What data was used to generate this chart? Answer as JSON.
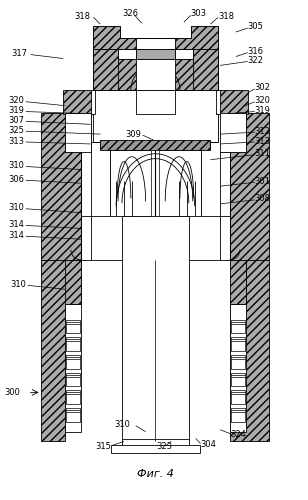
{
  "title": "Фиг. 4",
  "bg_color": "#ffffff",
  "line_color": "#000000",
  "figsize": [
    3.08,
    5.0
  ],
  "dpi": 100
}
